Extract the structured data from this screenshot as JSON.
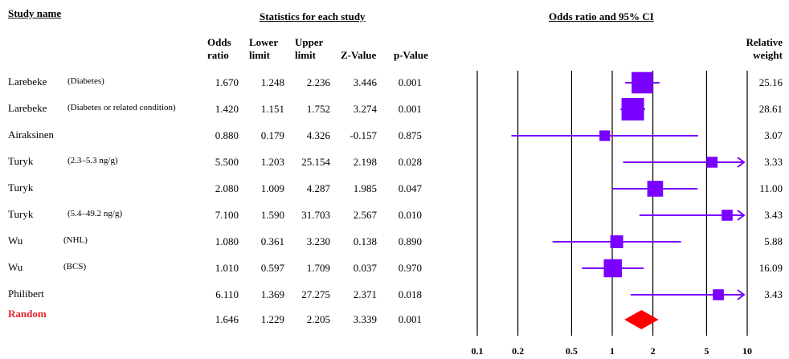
{
  "headers": {
    "study_name": "Study name",
    "statistics": "Statistics for each study",
    "plot": "Odds ratio and 95% CI",
    "odds_ratio": [
      "Odds",
      "ratio"
    ],
    "lower_limit": [
      "Lower",
      "limit"
    ],
    "upper_limit": [
      "Upper",
      "limit"
    ],
    "z_value": "Z-Value",
    "p_value": "p-Value",
    "relative_weight": [
      "Relative",
      "weight"
    ]
  },
  "chart_data": {
    "type": "forest",
    "title": "Odds ratio and 95% CI",
    "x_scale": "log",
    "xlim": [
      0.1,
      10
    ],
    "x_ticks": [
      "0.1",
      "0.2",
      "0.5",
      "1",
      "2",
      "5",
      "10"
    ],
    "x_tick_values": [
      0.1,
      0.2,
      0.5,
      1,
      2,
      5,
      10
    ],
    "marker_color": "#7a00ff",
    "summary_color": "#ff0000",
    "rows": [
      {
        "name": "Larebeke",
        "sub": "(Diabetes)",
        "or": "1.670",
        "lower": "1.248",
        "upper": "2.236",
        "z": "3.446",
        "p": "0.001",
        "weight": "25.16"
      },
      {
        "name": "Larebeke",
        "sub": "(Diabetes or related condition)",
        "or": "1.420",
        "lower": "1.151",
        "upper": "1.752",
        "z": "3.274",
        "p": "0.001",
        "weight": "28.61"
      },
      {
        "name": "Airaksinen",
        "sub": "",
        "or": "0.880",
        "lower": "0.179",
        "upper": "4.326",
        "z": "-0.157",
        "p": "0.875",
        "weight": "3.07"
      },
      {
        "name": "Turyk",
        "sub": "(2.3–5.3 ng/g)",
        "or": "5.500",
        "lower": "1.203",
        "upper": "25.154",
        "z": "2.198",
        "p": "0.028",
        "weight": "3.33"
      },
      {
        "name": "Turyk",
        "sub": "",
        "or": "2.080",
        "lower": "1.009",
        "upper": "4.287",
        "z": "1.985",
        "p": "0.047",
        "weight": "11.00"
      },
      {
        "name": "Turyk",
        "sub": "(5.4–49.2 ng/g)",
        "or": "7.100",
        "lower": "1.590",
        "upper": "31.703",
        "z": "2.567",
        "p": "0.010",
        "weight": "3.43"
      },
      {
        "name": "Wu",
        "sub": "(NHL)",
        "or": "1.080",
        "lower": "0.361",
        "upper": "3.230",
        "z": "0.138",
        "p": "0.890",
        "weight": "5.88"
      },
      {
        "name": "Wu",
        "sub": "(BCS)",
        "or": "1.010",
        "lower": "0.597",
        "upper": "1.709",
        "z": "0.037",
        "p": "0.970",
        "weight": "16.09"
      },
      {
        "name": "Philibert",
        "sub": "",
        "or": "6.110",
        "lower": "1.369",
        "upper": "27.275",
        "z": "2.371",
        "p": "0.018",
        "weight": "3.43"
      }
    ],
    "summary": {
      "name": "Random",
      "or": "1.646",
      "lower": "1.229",
      "upper": "2.205",
      "z": "3.339",
      "p": "0.001"
    }
  }
}
